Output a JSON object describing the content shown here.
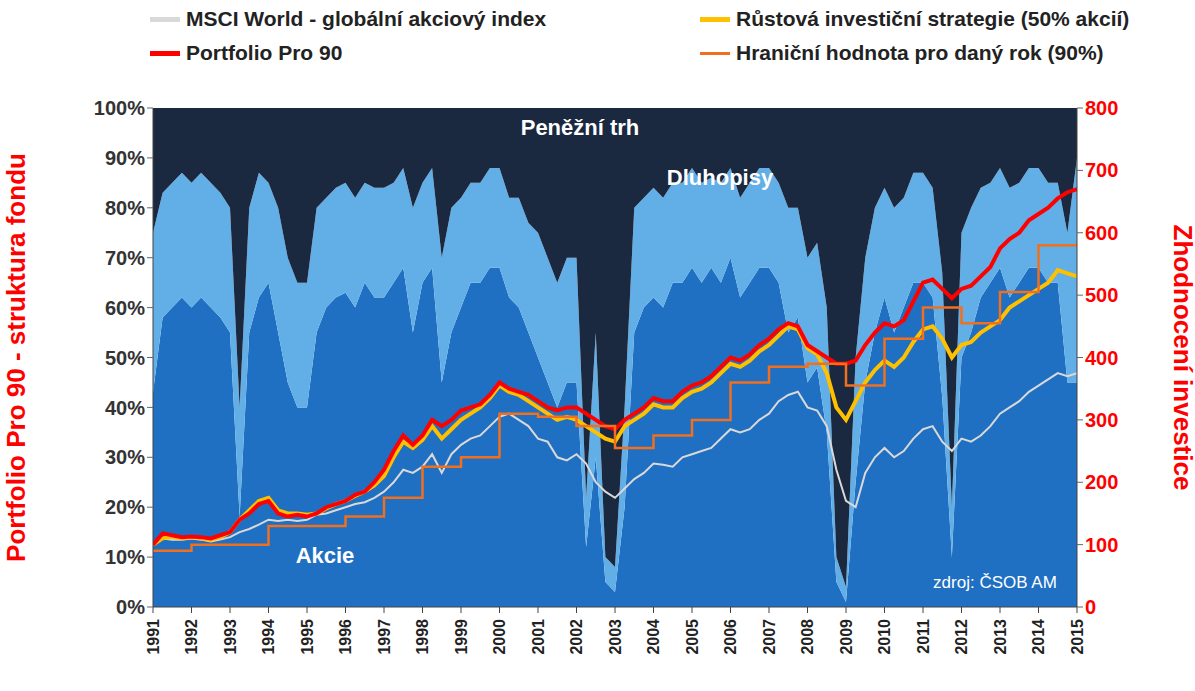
{
  "chart_data": {
    "type": "area",
    "stacked": true,
    "grid": false,
    "legend": "top",
    "y_label": "Portfolio Pro 90 - struktura fondu",
    "y2_label": "Zhodnocení investice",
    "annotations": [
      "zdroj: ČSOB AM"
    ],
    "x": [
      1991,
      1991.25,
      1991.5,
      1991.75,
      1992,
      1992.25,
      1992.5,
      1992.75,
      1993,
      1993.25,
      1993.5,
      1993.75,
      1994,
      1994.25,
      1994.5,
      1994.75,
      1995,
      1995.25,
      1995.5,
      1995.75,
      1996,
      1996.25,
      1996.5,
      1996.75,
      1997,
      1997.25,
      1997.5,
      1997.75,
      1998,
      1998.25,
      1998.5,
      1998.75,
      1999,
      1999.25,
      1999.5,
      1999.75,
      2000,
      2000.25,
      2000.5,
      2000.75,
      2001,
      2001.25,
      2001.5,
      2001.75,
      2002,
      2002.25,
      2002.5,
      2002.75,
      2003,
      2003.25,
      2003.5,
      2003.75,
      2004,
      2004.25,
      2004.5,
      2004.75,
      2005,
      2005.25,
      2005.5,
      2005.75,
      2006,
      2006.25,
      2006.5,
      2006.75,
      2007,
      2007.25,
      2007.5,
      2007.75,
      2008,
      2008.25,
      2008.5,
      2008.75,
      2009,
      2009.25,
      2009.5,
      2009.75,
      2010,
      2010.25,
      2010.5,
      2010.75,
      2011,
      2011.25,
      2011.5,
      2011.75,
      2012,
      2012.25,
      2012.5,
      2012.75,
      2013,
      2013.25,
      2013.5,
      2013.75,
      2014,
      2014.25,
      2014.5,
      2014.75,
      2015
    ],
    "xlim": [
      1991,
      2015
    ],
    "xticks": [
      1991,
      1992,
      1993,
      1994,
      1995,
      1996,
      1997,
      1998,
      1999,
      2000,
      2001,
      2002,
      2003,
      2004,
      2005,
      2006,
      2007,
      2008,
      2009,
      2010,
      2011,
      2012,
      2013,
      2014,
      2015
    ],
    "ylim": [
      0,
      100
    ],
    "yticks": [
      {
        "value": 0,
        "label": "0%"
      },
      {
        "value": 10,
        "label": "10%"
      },
      {
        "value": 20,
        "label": "20%"
      },
      {
        "value": 30,
        "label": "30%"
      },
      {
        "value": 40,
        "label": "40%"
      },
      {
        "value": 50,
        "label": "50%"
      },
      {
        "value": 60,
        "label": "60%"
      },
      {
        "value": 70,
        "label": "70%"
      },
      {
        "value": 80,
        "label": "80%"
      },
      {
        "value": 90,
        "label": "90%"
      },
      {
        "value": 100,
        "label": "100%"
      }
    ],
    "y2lim": [
      0,
      800
    ],
    "y2ticks": [
      0,
      100,
      200,
      300,
      400,
      500,
      600,
      700,
      800
    ],
    "series": [
      {
        "name": "Akcie",
        "type": "area",
        "color": "#1f6fc2",
        "values": [
          43,
          58,
          60,
          62,
          60,
          62,
          60,
          58,
          55,
          18,
          55,
          62,
          65,
          55,
          45,
          40,
          40,
          55,
          60,
          62,
          63,
          60,
          65,
          62,
          62,
          65,
          68,
          55,
          65,
          68,
          45,
          55,
          60,
          65,
          65,
          68,
          68,
          62,
          60,
          55,
          50,
          45,
          40,
          45,
          45,
          12,
          30,
          5,
          3,
          20,
          55,
          60,
          62,
          60,
          65,
          65,
          68,
          65,
          68,
          65,
          70,
          62,
          65,
          68,
          68,
          65,
          55,
          58,
          45,
          48,
          35,
          5,
          1,
          25,
          45,
          55,
          62,
          55,
          60,
          65,
          65,
          62,
          42,
          10,
          50,
          55,
          62,
          65,
          68,
          62,
          65,
          68,
          68,
          65,
          65,
          45,
          45
        ]
      },
      {
        "name": "Dluhopisy",
        "type": "area",
        "color": "#62aee6",
        "values": [
          32,
          25,
          25,
          25,
          25,
          25,
          25,
          25,
          25,
          22,
          25,
          25,
          20,
          25,
          25,
          25,
          25,
          25,
          22,
          22,
          22,
          22,
          20,
          22,
          22,
          20,
          20,
          25,
          20,
          20,
          25,
          25,
          22,
          20,
          20,
          20,
          20,
          20,
          22,
          22,
          25,
          25,
          25,
          25,
          25,
          10,
          25,
          5,
          5,
          20,
          25,
          22,
          22,
          22,
          20,
          20,
          20,
          20,
          18,
          20,
          18,
          20,
          20,
          20,
          20,
          20,
          25,
          22,
          25,
          25,
          25,
          5,
          3,
          25,
          25,
          25,
          22,
          25,
          22,
          22,
          22,
          22,
          25,
          10,
          25,
          25,
          22,
          20,
          20,
          22,
          20,
          20,
          20,
          20,
          20,
          30,
          45
        ]
      },
      {
        "name": "Peněžní trh",
        "type": "area",
        "color": "#1a2840",
        "values": [
          25,
          17,
          15,
          13,
          15,
          13,
          15,
          17,
          20,
          60,
          20,
          13,
          15,
          20,
          30,
          35,
          35,
          20,
          18,
          16,
          15,
          18,
          15,
          16,
          16,
          15,
          12,
          20,
          15,
          12,
          30,
          20,
          18,
          15,
          15,
          12,
          12,
          18,
          18,
          23,
          25,
          30,
          35,
          30,
          30,
          78,
          45,
          90,
          92,
          60,
          20,
          18,
          16,
          18,
          15,
          15,
          12,
          15,
          14,
          15,
          12,
          18,
          15,
          12,
          12,
          15,
          20,
          20,
          30,
          27,
          40,
          90,
          96,
          50,
          30,
          20,
          16,
          20,
          18,
          13,
          13,
          16,
          33,
          80,
          25,
          20,
          16,
          15,
          12,
          16,
          15,
          12,
          12,
          15,
          15,
          25,
          10
        ]
      },
      {
        "name": "MSCI World - globální akciový index",
        "type": "line",
        "axis": "y2",
        "color": "#d9d9d9",
        "values": [
          100,
          110,
          108,
          108,
          110,
          108,
          105,
          108,
          112,
          120,
          125,
          132,
          140,
          138,
          140,
          138,
          140,
          148,
          150,
          155,
          160,
          165,
          168,
          175,
          185,
          200,
          220,
          215,
          225,
          245,
          215,
          245,
          260,
          270,
          275,
          290,
          305,
          310,
          300,
          290,
          270,
          265,
          240,
          235,
          245,
          230,
          200,
          185,
          175,
          190,
          205,
          215,
          230,
          228,
          225,
          240,
          245,
          250,
          255,
          270,
          285,
          280,
          285,
          300,
          310,
          330,
          340,
          345,
          320,
          315,
          290,
          220,
          170,
          160,
          215,
          240,
          255,
          240,
          250,
          270,
          285,
          290,
          265,
          250,
          270,
          265,
          275,
          290,
          310,
          320,
          330,
          345,
          355,
          365,
          375,
          370,
          375
        ]
      },
      {
        "name": "Růstová investiční strategie (50% akcií)",
        "type": "line",
        "axis": "y2",
        "color": "#ffc000",
        "values": [
          100,
          110,
          112,
          110,
          112,
          110,
          108,
          112,
          120,
          140,
          155,
          170,
          175,
          155,
          150,
          150,
          148,
          150,
          158,
          165,
          170,
          178,
          185,
          195,
          210,
          240,
          265,
          255,
          268,
          290,
          270,
          285,
          300,
          310,
          320,
          335,
          355,
          345,
          340,
          330,
          320,
          310,
          300,
          305,
          300,
          290,
          280,
          270,
          265,
          290,
          300,
          310,
          325,
          320,
          320,
          335,
          345,
          350,
          360,
          375,
          390,
          385,
          395,
          410,
          420,
          435,
          450,
          445,
          415,
          405,
          375,
          320,
          300,
          330,
          360,
          380,
          395,
          385,
          400,
          425,
          445,
          450,
          430,
          400,
          420,
          425,
          440,
          450,
          460,
          480,
          490,
          500,
          510,
          520,
          540,
          535,
          530
        ]
      },
      {
        "name": "Portfolio Pro 90",
        "type": "line",
        "axis": "y2",
        "color": "#ff0000",
        "values": [
          100,
          118,
          115,
          112,
          113,
          112,
          110,
          115,
          120,
          140,
          150,
          165,
          170,
          150,
          145,
          148,
          145,
          150,
          160,
          165,
          170,
          180,
          185,
          200,
          220,
          250,
          275,
          260,
          275,
          300,
          290,
          300,
          315,
          320,
          325,
          340,
          360,
          350,
          345,
          340,
          330,
          320,
          315,
          320,
          320,
          310,
          300,
          290,
          285,
          300,
          310,
          320,
          335,
          330,
          330,
          345,
          355,
          360,
          370,
          385,
          400,
          395,
          405,
          420,
          430,
          445,
          455,
          450,
          420,
          410,
          400,
          390,
          390,
          395,
          420,
          440,
          455,
          450,
          460,
          490,
          520,
          525,
          510,
          495,
          510,
          515,
          530,
          545,
          575,
          590,
          600,
          620,
          630,
          640,
          655,
          665,
          670
        ]
      },
      {
        "name": "Hraniční hodnota pro daný rok (90%)",
        "type": "line",
        "axis": "y2",
        "line_style": "step",
        "color": "#f07020",
        "values": [
          90,
          90,
          90,
          90,
          100,
          100,
          100,
          100,
          100,
          100,
          100,
          100,
          130,
          130,
          130,
          130,
          130,
          130,
          130,
          130,
          145,
          145,
          145,
          145,
          175,
          175,
          175,
          175,
          225,
          225,
          225,
          225,
          240,
          240,
          240,
          240,
          310,
          310,
          310,
          310,
          305,
          305,
          305,
          305,
          290,
          290,
          290,
          290,
          255,
          255,
          255,
          255,
          275,
          275,
          275,
          275,
          300,
          300,
          300,
          300,
          360,
          360,
          360,
          360,
          385,
          385,
          385,
          385,
          390,
          390,
          390,
          390,
          355,
          355,
          355,
          355,
          430,
          430,
          430,
          430,
          480,
          480,
          480,
          480,
          455,
          455,
          455,
          455,
          505,
          505,
          505,
          505,
          580,
          580,
          580,
          580,
          580
        ]
      }
    ]
  }
}
